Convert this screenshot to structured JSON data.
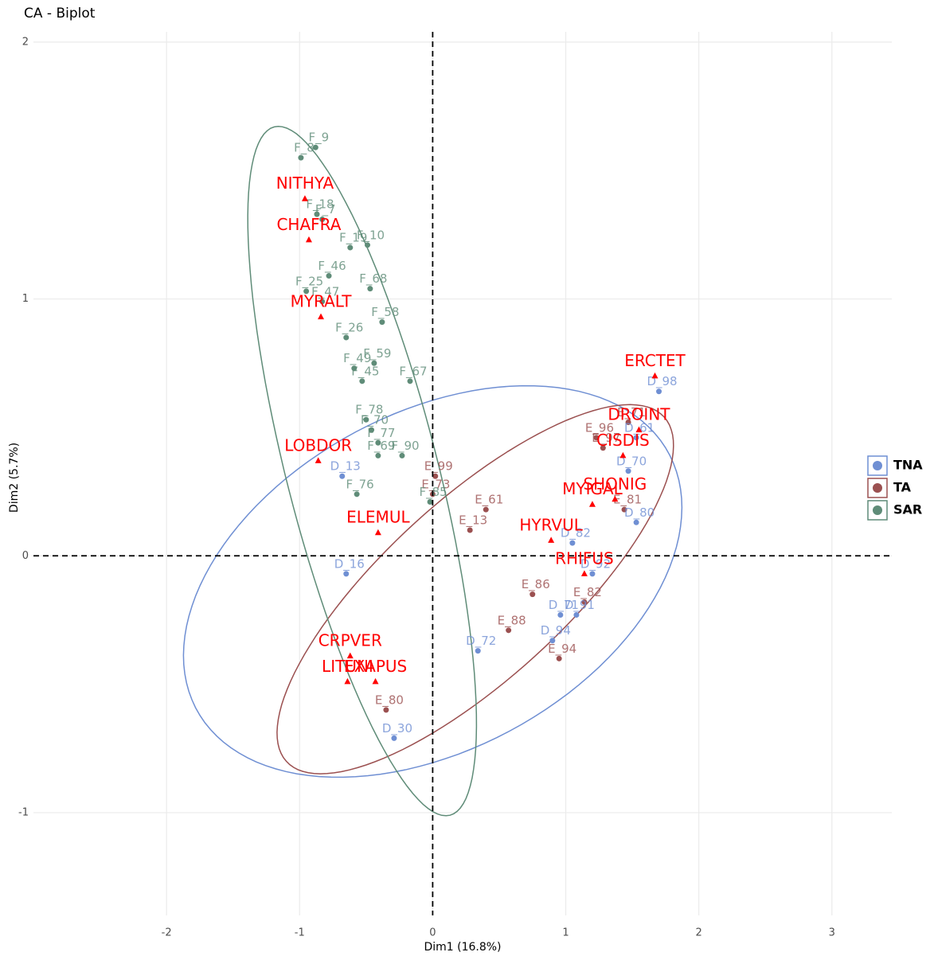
{
  "chart_data": {
    "type": "scatter",
    "title": "CA - Biplot",
    "x_label": "Dim1 (16.8%)",
    "y_label": "Dim2 (5.7%)",
    "xlim": [
      -3.0,
      3.45
    ],
    "ylim": [
      -1.4,
      2.04
    ],
    "xticks": [
      -2,
      -1,
      0,
      1,
      2,
      3
    ],
    "yticks": [
      -1,
      0,
      1,
      2
    ],
    "grid": true,
    "hline": 0,
    "vline": 0,
    "legend": "right",
    "series": [
      {
        "name": "TNA",
        "color": "#6f8fd3",
        "labels": [
          "D_98",
          "D_61",
          "D_70",
          "D_80",
          "D_82",
          "D_92",
          "D_91",
          "D_71",
          "D_94",
          "D_72",
          "D_30",
          "D_16",
          "D_13"
        ],
        "x": [
          1.7,
          1.53,
          1.47,
          1.53,
          1.05,
          1.2,
          1.08,
          0.96,
          0.9,
          0.34,
          -0.29,
          -0.65,
          -0.68
        ],
        "values": [
          0.64,
          0.46,
          0.33,
          0.13,
          0.05,
          -0.07,
          -0.23,
          -0.23,
          -0.33,
          -0.37,
          -0.71,
          -0.07,
          0.31
        ],
        "ellipse": {
          "center": [
            0.0,
            -0.1
          ],
          "u": [
            1.87,
            0.25
          ],
          "v": [
            0.1,
            0.72
          ]
        }
      },
      {
        "name": "TA",
        "color": "#9b5050",
        "labels": [
          "E_71",
          "E_96",
          "E_97",
          "E_99",
          "E_73",
          "E_13",
          "E_82",
          "E_94",
          "E_88",
          "E_81",
          "E_61",
          "E_80",
          "E_86"
        ],
        "x": [
          1.47,
          1.23,
          1.28,
          0.02,
          0.0,
          0.28,
          1.14,
          0.95,
          0.57,
          1.44,
          0.4,
          -0.35,
          0.75
        ],
        "values": [
          0.52,
          0.46,
          0.42,
          0.31,
          0.24,
          0.1,
          -0.18,
          -0.4,
          -0.29,
          0.18,
          0.18,
          -0.6,
          -0.15
        ],
        "ellipse": {
          "center": [
            0.32,
            -0.13
          ],
          "u": [
            1.42,
            0.67
          ],
          "v": [
            0.45,
            -0.26
          ]
        }
      },
      {
        "name": "SAR",
        "color": "#5f8c78",
        "labels": [
          "F_9",
          "F_8",
          "F_18",
          "F_7",
          "F_19",
          "F_10",
          "F_46",
          "F_68",
          "F_25",
          "F_47",
          "F_58",
          "F_26",
          "F_59",
          "F_49",
          "F_67",
          "F_45",
          "F_78",
          "F_70",
          "F_77",
          "F_69",
          "F_90",
          "F_76",
          "F_85"
        ],
        "x": [
          -0.88,
          -0.99,
          -0.87,
          -0.83,
          -0.62,
          -0.49,
          -0.78,
          -0.47,
          -0.95,
          -0.83,
          -0.38,
          -0.65,
          -0.44,
          -0.59,
          -0.17,
          -0.53,
          -0.5,
          -0.46,
          -0.41,
          -0.41,
          -0.23,
          -0.57,
          -0.02
        ],
        "values": [
          1.59,
          1.55,
          1.33,
          1.31,
          1.2,
          1.21,
          1.09,
          1.04,
          1.03,
          0.99,
          0.91,
          0.85,
          0.75,
          0.73,
          0.68,
          0.68,
          0.53,
          0.49,
          0.44,
          0.39,
          0.39,
          0.24,
          0.21
        ],
        "ellipse": {
          "center": [
            -0.53,
            0.33
          ],
          "u": [
            -0.66,
            1.34
          ],
          "v": [
            0.55,
            0.074
          ]
        }
      }
    ],
    "species": {
      "color": "#ff0000",
      "labels": [
        "NITHYA",
        "CHAFRA",
        "MYRALT",
        "ERCTET",
        "DROINT",
        "CISDIS",
        "SHONIG",
        "MYIGAL",
        "HYRVUL",
        "RHIFUS",
        "LOBDOR",
        "ELEMUL",
        "CRPVER",
        "LITUNI",
        "EXAPUS"
      ],
      "x": [
        -0.96,
        -0.93,
        -0.84,
        1.67,
        1.55,
        1.43,
        1.37,
        1.2,
        0.89,
        1.14,
        -0.86,
        -0.41,
        -0.62,
        -0.64,
        -0.43
      ],
      "values": [
        1.39,
        1.23,
        0.93,
        0.7,
        0.49,
        0.39,
        0.22,
        0.2,
        0.06,
        -0.07,
        0.37,
        0.09,
        -0.39,
        -0.49,
        -0.49
      ]
    }
  }
}
